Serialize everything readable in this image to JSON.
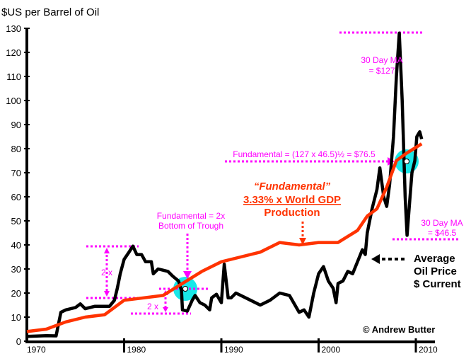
{
  "chart_data": {
    "type": "line",
    "title": "$US per Barrel of Oil",
    "xlabel": "",
    "ylabel": "$US per Barrel of Oil",
    "xlim": [
      1970,
      2011
    ],
    "ylim": [
      0,
      130
    ],
    "x_ticks": [
      "1970",
      "1980",
      "1990",
      "2000",
      "2010"
    ],
    "y_ticks": [
      "0",
      "10",
      "20",
      "30",
      "40",
      "50",
      "60",
      "70",
      "80",
      "90",
      "100",
      "110",
      "120",
      "130"
    ],
    "grid": false,
    "series": [
      {
        "name": "Average Oil Price $ Current",
        "color": "#000000",
        "points": [
          [
            1970,
            2
          ],
          [
            1972,
            2.3
          ],
          [
            1973,
            2.2
          ],
          [
            1973.5,
            12
          ],
          [
            1974,
            13
          ],
          [
            1975,
            14
          ],
          [
            1975.5,
            15.5
          ],
          [
            1976,
            13.5
          ],
          [
            1977,
            14.5
          ],
          [
            1978.5,
            14.5
          ],
          [
            1979,
            17
          ],
          [
            1979.3,
            22
          ],
          [
            1979.6,
            28
          ],
          [
            1980,
            34
          ],
          [
            1980.5,
            37
          ],
          [
            1980.9,
            39.5
          ],
          [
            1981.3,
            36
          ],
          [
            1981.8,
            36
          ],
          [
            1982.2,
            33
          ],
          [
            1982.8,
            33
          ],
          [
            1983,
            28
          ],
          [
            1983.5,
            30
          ],
          [
            1984,
            29.5
          ],
          [
            1984.5,
            29
          ],
          [
            1985,
            27
          ],
          [
            1985.6,
            25
          ],
          [
            1985.9,
            21
          ],
          [
            1986,
            13
          ],
          [
            1986.5,
            12.5
          ],
          [
            1987,
            17
          ],
          [
            1987.3,
            19
          ],
          [
            1987.8,
            16
          ],
          [
            1988.3,
            15
          ],
          [
            1988.8,
            13
          ],
          [
            1989,
            18
          ],
          [
            1989.5,
            19.5
          ],
          [
            1990,
            16
          ],
          [
            1990.3,
            32
          ],
          [
            1990.7,
            18
          ],
          [
            1991,
            18
          ],
          [
            1991.5,
            20
          ],
          [
            1992,
            19
          ],
          [
            1993,
            17
          ],
          [
            1994,
            15
          ],
          [
            1995,
            17
          ],
          [
            1996,
            20
          ],
          [
            1997,
            19
          ],
          [
            1998,
            12
          ],
          [
            1998.5,
            13
          ],
          [
            1999,
            10
          ],
          [
            1999.5,
            20
          ],
          [
            2000,
            28
          ],
          [
            2000.5,
            31
          ],
          [
            2001,
            25
          ],
          [
            2001.5,
            22
          ],
          [
            2001.8,
            16
          ],
          [
            2002,
            24
          ],
          [
            2002.5,
            25
          ],
          [
            2003,
            29
          ],
          [
            2003.5,
            28
          ],
          [
            2004,
            33
          ],
          [
            2004.5,
            38
          ],
          [
            2004.8,
            36
          ],
          [
            2005,
            45
          ],
          [
            2005.5,
            55
          ],
          [
            2006,
            63
          ],
          [
            2006.3,
            72
          ],
          [
            2006.7,
            60
          ],
          [
            2007,
            56
          ],
          [
            2007.3,
            65
          ],
          [
            2007.7,
            85
          ],
          [
            2008,
            110
          ],
          [
            2008.3,
            128
          ],
          [
            2008.6,
            100
          ],
          [
            2008.9,
            60
          ],
          [
            2009.1,
            44
          ],
          [
            2009.4,
            60
          ],
          [
            2009.6,
            70
          ],
          [
            2009.9,
            75
          ],
          [
            2010.1,
            85
          ],
          [
            2010.4,
            87
          ],
          [
            2010.6,
            84
          ]
        ]
      },
      {
        "name": "Fundamental 3.33% x World GDP Production",
        "color": "#ff3300",
        "points": [
          [
            1970,
            4
          ],
          [
            1972,
            5
          ],
          [
            1974,
            8
          ],
          [
            1976,
            10
          ],
          [
            1978,
            11
          ],
          [
            1980,
            17
          ],
          [
            1982,
            18
          ],
          [
            1984,
            19
          ],
          [
            1986,
            24
          ],
          [
            1988,
            29
          ],
          [
            1990,
            33
          ],
          [
            1992,
            35
          ],
          [
            1994,
            37
          ],
          [
            1996,
            41
          ],
          [
            1998,
            40
          ],
          [
            2000,
            41
          ],
          [
            2002,
            41
          ],
          [
            2004,
            46
          ],
          [
            2005,
            52
          ],
          [
            2006,
            55
          ],
          [
            2007,
            64
          ],
          [
            2008,
            75
          ],
          [
            2009,
            78
          ],
          [
            2010.6,
            82
          ]
        ]
      }
    ],
    "annotations": {
      "peak_ma": [
        "30 Day MA",
        "= $127"
      ],
      "trough_ma": [
        "30 Day MA",
        "= $46.5"
      ],
      "geo_mean": "Fundamental = (127 x 46.5)½ = $76.5",
      "fund_title": "“Fundamental”",
      "fund_line1": "3.33% x World GDP",
      "fund_line2": "Production",
      "trough": [
        "Fundamental = 2x",
        "Bottom of Trough"
      ],
      "two_x": "2 x",
      "avg": [
        "Average",
        "Oil Price",
        "$ Current"
      ],
      "credit": "© Andrew Butter"
    },
    "colors": {
      "annotation": "#ff00ff",
      "highlight": "#00e5e5"
    }
  }
}
